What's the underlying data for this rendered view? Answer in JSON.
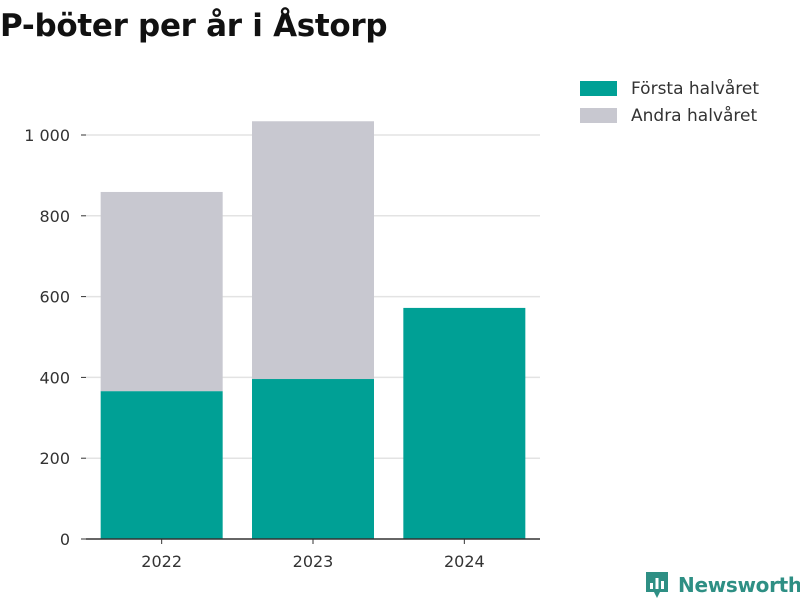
{
  "title": "P-böter per år i Åstorp",
  "colors": {
    "first_half": "#00a095",
    "second_half": "#c8c8d0",
    "grid": "#e3e3e3",
    "axis": "#333333",
    "brand": "#2e8f84"
  },
  "legend": {
    "items": [
      {
        "label": "Första halvåret",
        "color": "#00a095"
      },
      {
        "label": "Andra halvåret",
        "color": "#c8c8d0"
      }
    ]
  },
  "brand": {
    "name": "Newsworthy",
    "icon": "newsworthy-logo-icon"
  },
  "chart_data": {
    "type": "bar",
    "stacked": true,
    "title": "P-böter per år i Åstorp",
    "xlabel": "",
    "ylabel": "",
    "categories": [
      "2022",
      "2023",
      "2024"
    ],
    "series": [
      {
        "name": "Första halvåret",
        "values": [
          366,
          396,
          572
        ],
        "color": "#00a095"
      },
      {
        "name": "Andra halvåret",
        "values": [
          493,
          638,
          0
        ],
        "color": "#c8c8d0"
      }
    ],
    "ylim": [
      0,
      1040
    ],
    "yticks": [
      0,
      200,
      400,
      600,
      800,
      1000
    ],
    "ytick_labels": [
      "0",
      "200",
      "400",
      "600",
      "800",
      "1 000"
    ],
    "grid": true,
    "legend_position": "top-right"
  }
}
